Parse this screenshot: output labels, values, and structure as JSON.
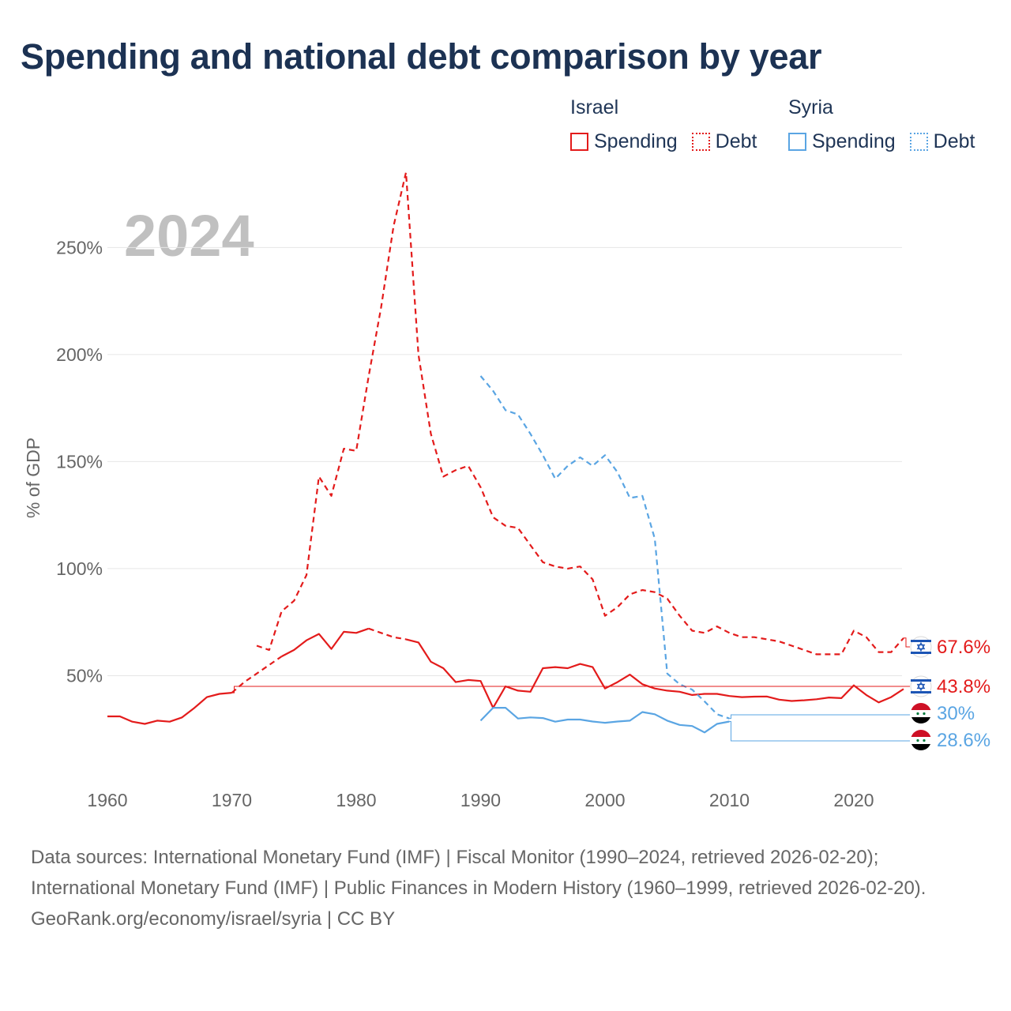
{
  "title": "Spending and national debt comparison by year",
  "legend": {
    "groups": [
      {
        "country": "Israel",
        "items": [
          {
            "label": "Spending",
            "style": "solid",
            "color": "#e31b1b"
          },
          {
            "label": "Debt",
            "style": "dotted",
            "color": "#e31b1b"
          }
        ]
      },
      {
        "country": "Syria",
        "items": [
          {
            "label": "Spending",
            "style": "solid",
            "color": "#5aa5e3"
          },
          {
            "label": "Debt",
            "style": "dotted",
            "color": "#5aa5e3"
          }
        ]
      }
    ]
  },
  "colors": {
    "israel": "#e31b1b",
    "syria": "#5aa5e3",
    "grid": "#e6e6e6",
    "axis_text": "#666666",
    "year_label": "#c0c0c0"
  },
  "icons": {
    "israel": "israel-flag-icon",
    "syria": "syria-flag-icon"
  },
  "chart_data": {
    "type": "line",
    "title": "Spending and national debt comparison by year",
    "year_label": "2024",
    "xlabel": "",
    "ylabel": "% of GDP",
    "xlim": [
      1960,
      2024
    ],
    "ylim": [
      0,
      280
    ],
    "x_ticks": [
      1960,
      1970,
      1980,
      1990,
      2000,
      2010,
      2020
    ],
    "y_ticks": [
      {
        "value": 50,
        "label": "50%"
      },
      {
        "value": 100,
        "label": "100%"
      },
      {
        "value": 150,
        "label": "150%"
      },
      {
        "value": 200,
        "label": "200%"
      },
      {
        "value": 250,
        "label": "250%"
      }
    ],
    "grid": true,
    "series": [
      {
        "name": "Israel Debt",
        "country": "Israel",
        "metric": "Debt",
        "style": "dashed",
        "color": "#e31b1b",
        "end_label": "67.6%",
        "points": [
          [
            1972,
            64
          ],
          [
            1973,
            62
          ],
          [
            1974,
            80
          ],
          [
            1975,
            85
          ],
          [
            1976,
            97
          ],
          [
            1977,
            143
          ],
          [
            1978,
            134
          ],
          [
            1979,
            156
          ],
          [
            1980,
            155
          ],
          [
            1981,
            190
          ],
          [
            1982,
            222
          ],
          [
            1983,
            260
          ],
          [
            1984,
            285
          ],
          [
            1985,
            200
          ],
          [
            1986,
            163
          ],
          [
            1987,
            143
          ],
          [
            1988,
            146
          ],
          [
            1989,
            148
          ],
          [
            1990,
            138
          ],
          [
            1991,
            124
          ],
          [
            1992,
            120
          ],
          [
            1993,
            119
          ],
          [
            1994,
            111
          ],
          [
            1995,
            103
          ],
          [
            1996,
            101
          ],
          [
            1997,
            100
          ],
          [
            1998,
            101
          ],
          [
            1999,
            95
          ],
          [
            2000,
            78
          ],
          [
            2001,
            82
          ],
          [
            2002,
            88
          ],
          [
            2003,
            90
          ],
          [
            2004,
            89
          ],
          [
            2005,
            86
          ],
          [
            2006,
            78
          ],
          [
            2007,
            71
          ],
          [
            2008,
            70
          ],
          [
            2009,
            73
          ],
          [
            2010,
            70
          ],
          [
            2011,
            68
          ],
          [
            2012,
            68
          ],
          [
            2013,
            67
          ],
          [
            2014,
            66
          ],
          [
            2015,
            64
          ],
          [
            2016,
            62
          ],
          [
            2017,
            60
          ],
          [
            2018,
            60
          ],
          [
            2019,
            60
          ],
          [
            2020,
            71
          ],
          [
            2021,
            68
          ],
          [
            2022,
            61
          ],
          [
            2023,
            61
          ],
          [
            2024,
            67.6
          ]
        ]
      },
      {
        "name": "Israel Spending",
        "country": "Israel",
        "metric": "Spending",
        "style": "solid",
        "color": "#e31b1b",
        "end_label": "43.8%",
        "points": [
          [
            1960,
            31
          ],
          [
            1961,
            31
          ],
          [
            1962,
            28.5
          ],
          [
            1963,
            27.5
          ],
          [
            1964,
            29
          ],
          [
            1965,
            28.5
          ],
          [
            1966,
            30.5
          ],
          [
            1967,
            35
          ],
          [
            1968,
            40
          ],
          [
            1969,
            41.5
          ],
          [
            1970,
            42
          ]
        ]
      },
      {
        "name": "Israel Spending (interpolated)",
        "country": "Israel",
        "metric": "Spending",
        "style": "dashed",
        "color": "#e31b1b",
        "points": [
          [
            1970,
            42
          ],
          [
            1971,
            47
          ],
          [
            1972,
            51
          ],
          [
            1973,
            55
          ],
          [
            1974,
            59
          ]
        ]
      },
      {
        "name": "Israel Spending",
        "country": "Israel",
        "metric": "Spending",
        "style": "solid",
        "color": "#e31b1b",
        "points": [
          [
            1974,
            59
          ],
          [
            1975,
            62
          ],
          [
            1976,
            66.5
          ],
          [
            1977,
            69.5
          ],
          [
            1978,
            62.5
          ],
          [
            1979,
            70.5
          ],
          [
            1980,
            70
          ],
          [
            1981,
            72
          ]
        ]
      },
      {
        "name": "Israel Spending (interpolated)",
        "country": "Israel",
        "metric": "Spending",
        "style": "dashed",
        "color": "#e31b1b",
        "points": [
          [
            1981,
            72
          ],
          [
            1982,
            70
          ],
          [
            1983,
            68
          ],
          [
            1984,
            67
          ]
        ]
      },
      {
        "name": "Israel Spending",
        "country": "Israel",
        "metric": "Spending",
        "style": "solid",
        "color": "#e31b1b",
        "points": [
          [
            1984,
            67
          ],
          [
            1985,
            65.5
          ],
          [
            1986,
            56.5
          ],
          [
            1987,
            53.5
          ],
          [
            1988,
            47
          ],
          [
            1989,
            48
          ],
          [
            1990,
            47.5
          ],
          [
            1991,
            35
          ],
          [
            1992,
            45
          ],
          [
            1993,
            43
          ],
          [
            1994,
            42.5
          ],
          [
            1995,
            53.5
          ],
          [
            1996,
            54
          ],
          [
            1997,
            53.5
          ],
          [
            1998,
            55.5
          ],
          [
            1999,
            54
          ],
          [
            2000,
            44
          ],
          [
            2001,
            47
          ],
          [
            2002,
            50.5
          ],
          [
            2003,
            46
          ],
          [
            2004,
            44
          ],
          [
            2005,
            43
          ],
          [
            2006,
            42.5
          ],
          [
            2007,
            41
          ],
          [
            2008,
            41.5
          ],
          [
            2009,
            41.5
          ],
          [
            2010,
            40.5
          ],
          [
            2011,
            40
          ],
          [
            2012,
            40.2
          ],
          [
            2013,
            40.3
          ],
          [
            2014,
            38.8
          ],
          [
            2015,
            38.2
          ],
          [
            2016,
            38.5
          ],
          [
            2017,
            39
          ],
          [
            2018,
            39.8
          ],
          [
            2019,
            39.5
          ],
          [
            2020,
            45.5
          ],
          [
            2021,
            41
          ],
          [
            2022,
            37.5
          ],
          [
            2023,
            40
          ],
          [
            2024,
            43.8
          ]
        ]
      },
      {
        "name": "Syria Debt",
        "country": "Syria",
        "metric": "Debt",
        "style": "dashed",
        "color": "#5aa5e3",
        "end_label": "30%",
        "points": [
          [
            1990,
            190
          ],
          [
            1991,
            183
          ],
          [
            1992,
            174
          ],
          [
            1993,
            172
          ],
          [
            1994,
            163
          ],
          [
            1995,
            153
          ],
          [
            1996,
            142
          ],
          [
            1997,
            148
          ],
          [
            1998,
            152
          ],
          [
            1999,
            148
          ],
          [
            2000,
            153
          ],
          [
            2001,
            145
          ],
          [
            2002,
            133
          ],
          [
            2003,
            134
          ],
          [
            2004,
            114
          ],
          [
            2005,
            51
          ],
          [
            2006,
            46
          ],
          [
            2007,
            43.5
          ],
          [
            2008,
            38
          ],
          [
            2009,
            32
          ],
          [
            2010,
            30
          ]
        ]
      },
      {
        "name": "Syria Spending",
        "country": "Syria",
        "metric": "Spending",
        "style": "solid",
        "color": "#5aa5e3",
        "end_label": "28.6%",
        "points": [
          [
            1990,
            29
          ],
          [
            1991,
            35
          ],
          [
            1992,
            35
          ],
          [
            1993,
            30
          ],
          [
            1994,
            30.5
          ],
          [
            1995,
            30.2
          ],
          [
            1996,
            28.5
          ],
          [
            1997,
            29.5
          ],
          [
            1998,
            29.5
          ],
          [
            1999,
            28.6
          ],
          [
            2000,
            28
          ],
          [
            2001,
            28.6
          ],
          [
            2002,
            29
          ],
          [
            2003,
            33
          ],
          [
            2004,
            32
          ],
          [
            2005,
            29
          ],
          [
            2006,
            27
          ],
          [
            2007,
            26.5
          ],
          [
            2008,
            23.5
          ],
          [
            2009,
            27.5
          ],
          [
            2010,
            28.6
          ]
        ]
      }
    ],
    "end_labels": [
      {
        "label": "67.6%",
        "country": "Israel",
        "metric": "Debt",
        "value": 67.6,
        "color": "#e31b1b",
        "flag": "israel-flag-icon"
      },
      {
        "label": "43.8%",
        "country": "Israel",
        "metric": "Spending",
        "value": 43.8,
        "color": "#e31b1b",
        "flag": "israel-flag-icon"
      },
      {
        "label": "30%",
        "country": "Syria",
        "metric": "Debt",
        "value": 30,
        "color": "#5aa5e3",
        "flag": "syria-flag-icon"
      },
      {
        "label": "28.6%",
        "country": "Syria",
        "metric": "Spending",
        "value": 28.6,
        "color": "#5aa5e3",
        "flag": "syria-flag-icon"
      }
    ]
  },
  "footer": {
    "sources": "Data sources: International Monetary Fund (IMF) | Fiscal Monitor (1990–2024, retrieved 2026-02-20); International Monetary Fund (IMF) | Public Finances in Modern History (1960–1999, retrieved 2026-02-20).",
    "credit": "GeoRank.org/economy/israel/syria | CC BY"
  }
}
